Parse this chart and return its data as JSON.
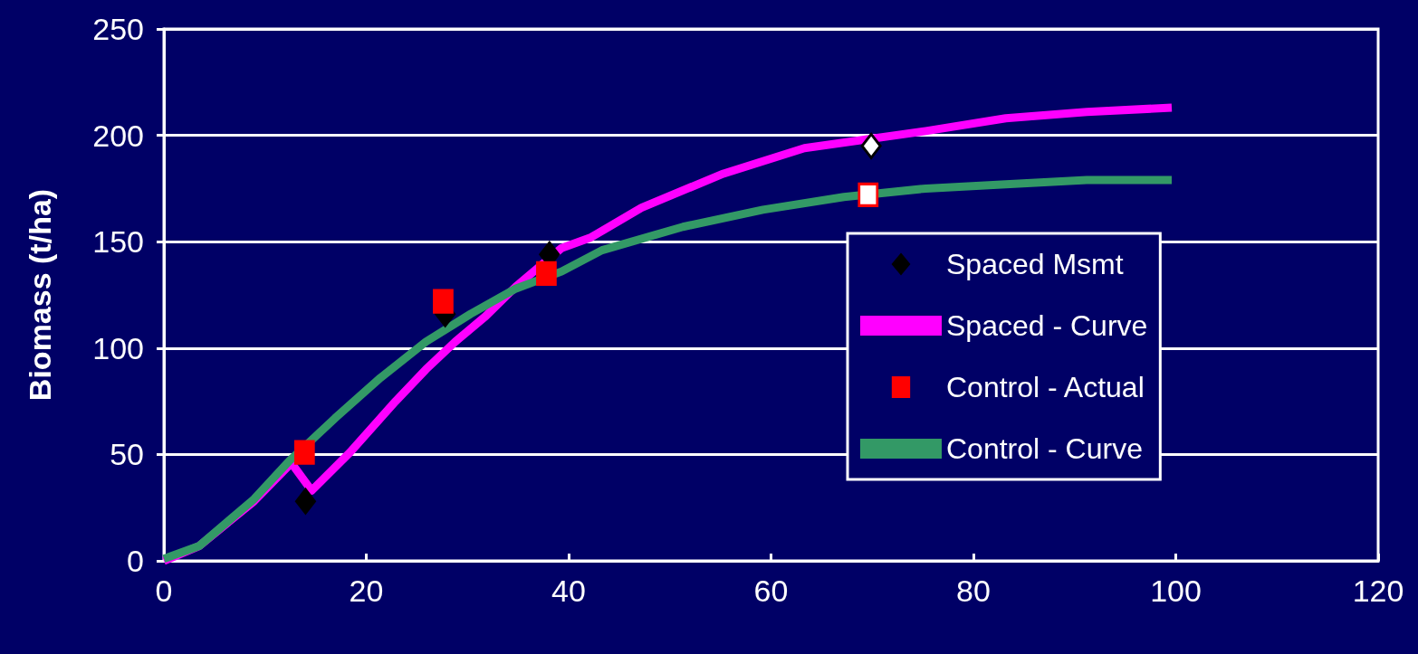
{
  "chart_data": {
    "type": "line",
    "ylabel": "Biomass (t/ha)",
    "xlim": [
      0,
      120
    ],
    "xticks": [
      0,
      20,
      40,
      60,
      80,
      100,
      120
    ],
    "ylim": [
      0,
      250
    ],
    "yticks": [
      0,
      50,
      100,
      150,
      200,
      250
    ],
    "grid": "y",
    "legend": "right",
    "series": [
      {
        "name": "Spaced Msmt",
        "type": "scatter",
        "marker": "diamond",
        "color": "#000000",
        "colors": [
          "#000000",
          "#000000",
          "#000000",
          "#ffffff"
        ],
        "x": [
          14,
          27.8,
          38.1,
          69.9
        ],
        "values": [
          28,
          116,
          144,
          195
        ]
      },
      {
        "name": "Spaced - Curve",
        "marker": "none",
        "color": "#ff00ff",
        "x": [
          0,
          3.5,
          8.9,
          12.6,
          14.6,
          18.4,
          22.9,
          25.9,
          28.8,
          31.8,
          34.8,
          39.3,
          42.2,
          47.2,
          55.3,
          63.3,
          75.3,
          83.2,
          91.2,
          99.6
        ],
        "values": [
          0,
          7,
          28,
          46,
          33,
          51,
          75,
          90,
          103,
          115,
          129,
          147,
          152,
          166,
          182,
          194,
          202,
          208,
          211,
          213
        ]
      },
      {
        "name": "Control - Actual",
        "type": "scatter",
        "marker": "square",
        "color": "#ff0000",
        "colors": [
          "#ff0000",
          "#ff0000",
          "#ff0000",
          "#ffffff"
        ],
        "x": [
          13.9,
          27.6,
          37.8,
          69.6
        ],
        "values": [
          51,
          122,
          135,
          172
        ]
      },
      {
        "name": "Control - Curve",
        "marker": "none",
        "color": "#339966",
        "x": [
          0,
          3.5,
          8.9,
          12.4,
          16.9,
          21.4,
          25.9,
          30.3,
          34.8,
          39.3,
          43.3,
          51.3,
          59.2,
          67.2,
          75.3,
          83.2,
          91.2,
          99.6
        ],
        "values": [
          1,
          7,
          29,
          47,
          67,
          86,
          103,
          116,
          128,
          136,
          146,
          157,
          165,
          171,
          175,
          177,
          179,
          179
        ]
      }
    ]
  }
}
